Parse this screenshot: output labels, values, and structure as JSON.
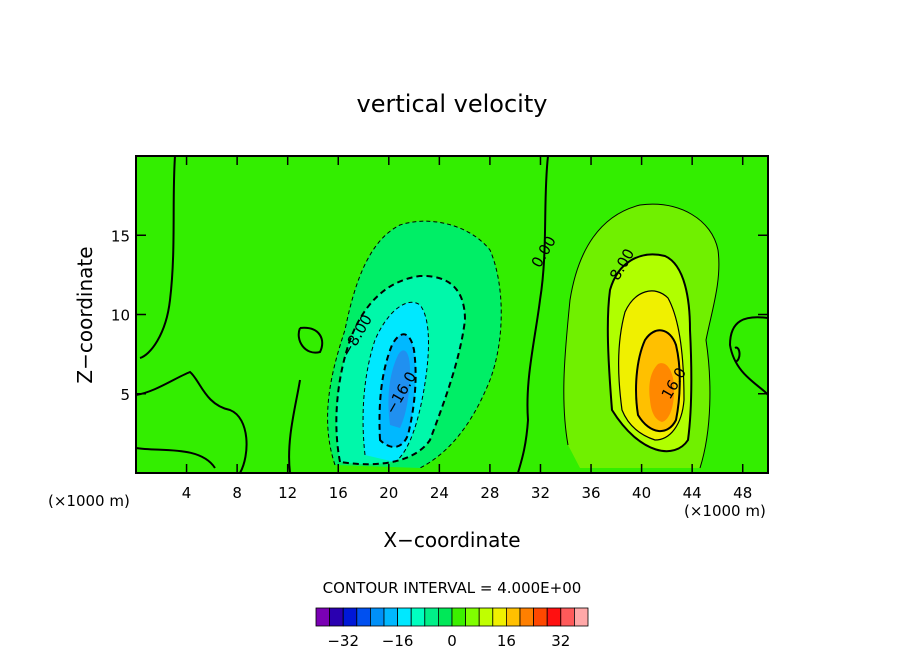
{
  "chart_data": {
    "type": "contour",
    "title": "vertical velocity",
    "xlabel": "X−coordinate",
    "ylabel": "Z−coordinate",
    "x_unit_label": "(×1000 m)",
    "xlim": [
      0,
      50
    ],
    "ylim": [
      0,
      20
    ],
    "x_ticks": [
      4,
      8,
      12,
      16,
      20,
      24,
      28,
      32,
      36,
      40,
      44,
      48
    ],
    "y_ticks": [
      5,
      10,
      15
    ],
    "contour_interval_text": "CONTOUR INTERVAL = 4.000E+00",
    "contour_labels": [
      {
        "text": "0.00",
        "x": 32.6,
        "y": 13.8
      },
      {
        "text": "8.00",
        "x": 38.8,
        "y": 13.0
      },
      {
        "text": "16.0",
        "x": 42.9,
        "y": 5.5
      },
      {
        "text": "−8.00",
        "x": 17.8,
        "y": 8.5
      },
      {
        "text": "−16.0",
        "x": 21.3,
        "y": 4.9
      }
    ],
    "extrema": {
      "min_approx": -20,
      "max_approx": 20,
      "updraft": {
        "x": 41.5,
        "z": 5.2,
        "peak": 20
      },
      "downdraft": {
        "x": 20.3,
        "z": 5.5,
        "peak": -20
      }
    },
    "colorbar": {
      "levels": [
        -36,
        -32,
        -28,
        -24,
        -20,
        -16,
        -12,
        -8,
        -4,
        0,
        4,
        8,
        12,
        16,
        20,
        24,
        28,
        32,
        36
      ],
      "tick_labels": [
        "−32",
        "−16",
        "0",
        "16",
        "32"
      ],
      "tick_values": [
        -32,
        -16,
        0,
        16,
        32
      ],
      "colors": [
        "#7a00b4",
        "#2a00b0",
        "#0018d8",
        "#0050f0",
        "#0090f8",
        "#00b8ff",
        "#00e8ff",
        "#00ffc0",
        "#00f088",
        "#00e858",
        "#3cf000",
        "#80ff00",
        "#c0ff00",
        "#f0f000",
        "#ffc000",
        "#ff8000",
        "#ff4800",
        "#ff1010",
        "#ff5a5a",
        "#ffa8a8"
      ]
    }
  }
}
